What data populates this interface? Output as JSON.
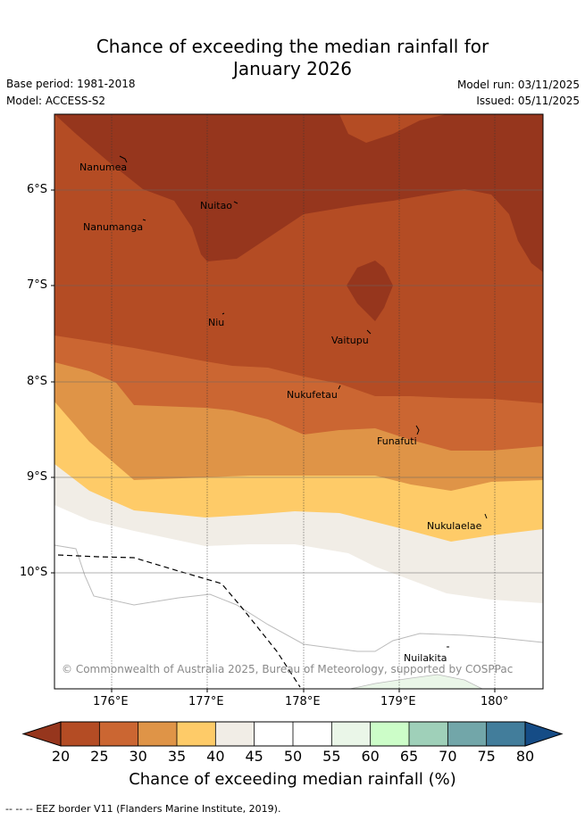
{
  "title_line1": "Chance of exceeding the median rainfall for",
  "title_line2": "January 2026",
  "base_period": "Base period: 1981-2018",
  "model": "Model: ACCESS-S2",
  "model_run": "Model run: 03/11/2025",
  "issued": "Issued: 05/11/2025",
  "lat_ticks": [
    "6°S",
    "7°S",
    "8°S",
    "9°S",
    "10°S"
  ],
  "lon_ticks": [
    "176°E",
    "177°E",
    "178°E",
    "179°E",
    "180°"
  ],
  "places": [
    "Nanumea",
    "Nuitao",
    "Nanumanga",
    "Niu",
    "Vaitupu",
    "Nukufetau",
    "Funafuti",
    "Nukulaelae",
    "Nuilakita"
  ],
  "copyright": "© Commonwealth of Australia 2025, Bureau of Meteorology, supported by COSPPac",
  "colorbar": {
    "labels": [
      "20",
      "25",
      "30",
      "35",
      "40",
      "45",
      "50",
      "55",
      "60",
      "65",
      "70",
      "75",
      "80"
    ],
    "colors": [
      "#b44c24",
      "#cb6632",
      "#df9447",
      "#fecb68",
      "#f1ede6",
      "#ffffff",
      "#ffffff",
      "#eaf6e8",
      "#ccfdc8",
      "#9fd0b9",
      "#72a6a9",
      "#427d9b"
    ],
    "low_extend_color": "#96361d",
    "high_extend_color": "#154c86",
    "title": "Chance of exceeding median rainfall (%)"
  },
  "legend_text": "-- -- -- EEZ border V11 (Flanders Marine Institute, 2019)."
}
